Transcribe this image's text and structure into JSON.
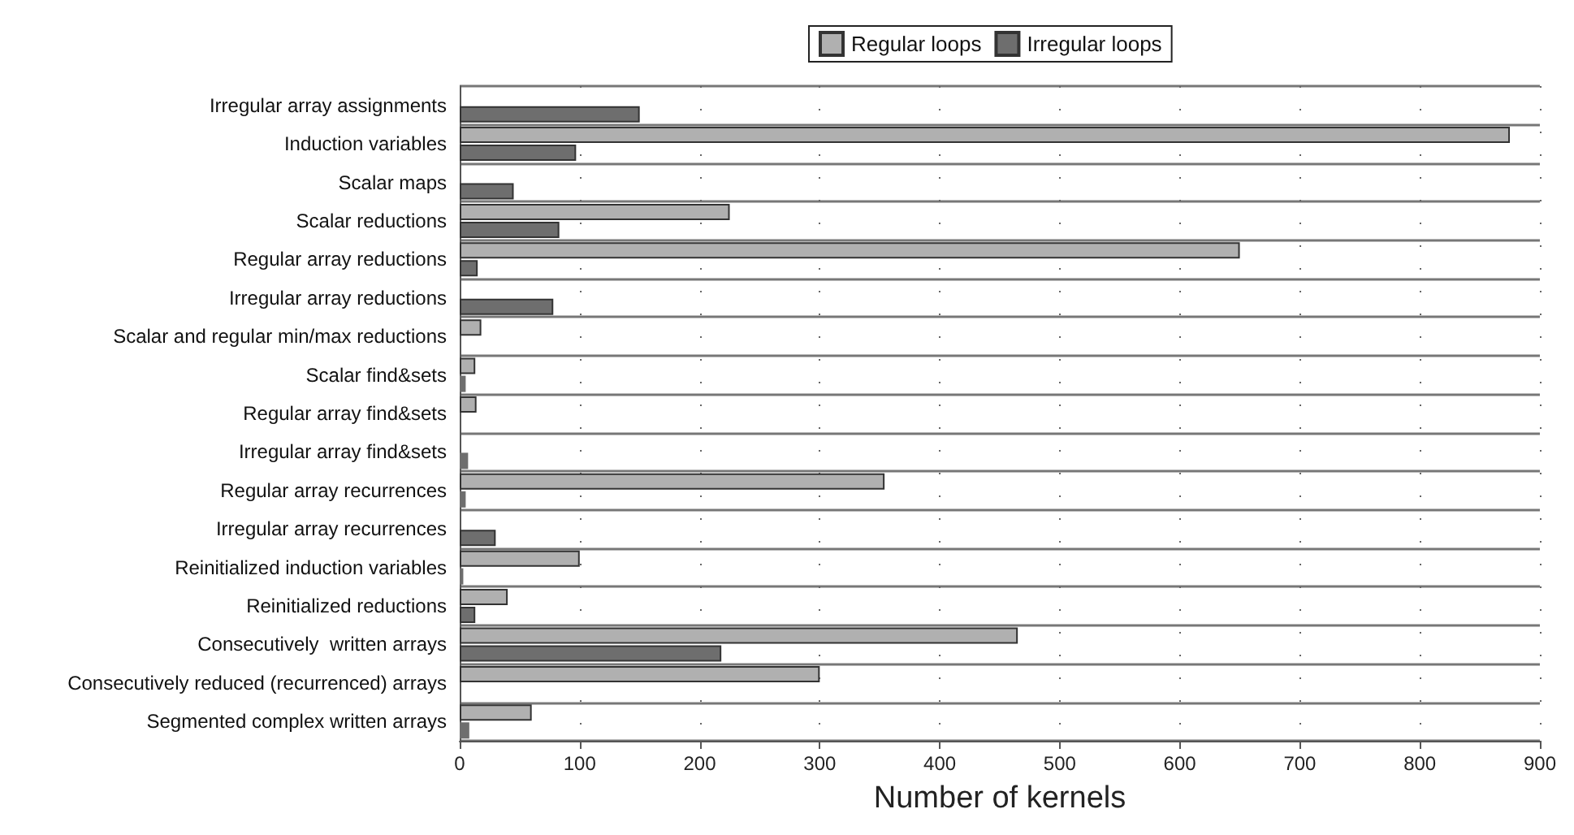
{
  "chart_data": {
    "type": "bar",
    "orientation": "horizontal",
    "xlabel": "Number of kernels",
    "categories": [
      "Irregular array assignments",
      "Induction variables",
      "Scalar maps",
      "Scalar reductions",
      "Regular array reductions",
      "Irregular array reductions",
      "Scalar and regular min/max reductions",
      "Scalar find&sets",
      "Regular array find&sets",
      "Irregular array find&sets",
      "Regular array recurrences",
      "Irregular array recurrences",
      "Reinitialized induction variables",
      "Reinitialized reductions",
      "Consecutively  written arrays",
      "Consecutively reduced (recurrenced) arrays",
      "Segmented complex written arrays"
    ],
    "series": [
      {
        "name": "Regular loops",
        "color": "#b0b0b0",
        "values": [
          0,
          875,
          0,
          225,
          650,
          0,
          18,
          13,
          14,
          0,
          354,
          0,
          100,
          40,
          465,
          300,
          60
        ]
      },
      {
        "name": "Irregular loops",
        "color": "#6e6e6e",
        "values": [
          150,
          97,
          45,
          83,
          15,
          78,
          null,
          5,
          null,
          7,
          5,
          30,
          3,
          13,
          218,
          0,
          8
        ]
      }
    ],
    "xlim": [
      0,
      900
    ],
    "xticks": [
      0,
      100,
      200,
      300,
      400,
      500,
      600,
      700,
      800,
      900
    ],
    "grid": true,
    "legend": "top"
  }
}
